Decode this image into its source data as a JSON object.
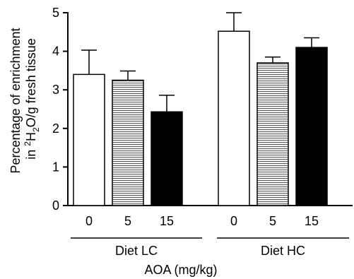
{
  "chart_data": {
    "type": "bar",
    "ylabel_line1": "Percentage of enrichment",
    "ylabel_line2_prefix": "in ",
    "ylabel_line2_sup": "2",
    "ylabel_line2_mid": "H",
    "ylabel_line2_sub": "2",
    "ylabel_line2_suffix": "O/g fresh tissue",
    "xlabel": "AOA (mg/kg)",
    "ylim": [
      0,
      5
    ],
    "yticks": [
      "0",
      "1",
      "2",
      "3",
      "4",
      "5"
    ],
    "groups": [
      {
        "label": "Diet LC",
        "categories": [
          "0",
          "5",
          "15"
        ]
      },
      {
        "label": "Diet HC",
        "categories": [
          "0",
          "5",
          "15"
        ]
      }
    ],
    "bars": [
      {
        "group": 0,
        "category": "0",
        "value": 3.4,
        "error": 0.63,
        "fill": "white"
      },
      {
        "group": 0,
        "category": "5",
        "value": 3.25,
        "error": 0.24,
        "fill": "hatched"
      },
      {
        "group": 0,
        "category": "15",
        "value": 2.43,
        "error": 0.43,
        "fill": "black"
      },
      {
        "group": 1,
        "category": "0",
        "value": 4.52,
        "error": 0.48,
        "fill": "white"
      },
      {
        "group": 1,
        "category": "5",
        "value": 3.7,
        "error": 0.15,
        "fill": "hatched"
      },
      {
        "group": 1,
        "category": "15",
        "value": 4.1,
        "error": 0.25,
        "fill": "black"
      }
    ],
    "grid": false
  }
}
